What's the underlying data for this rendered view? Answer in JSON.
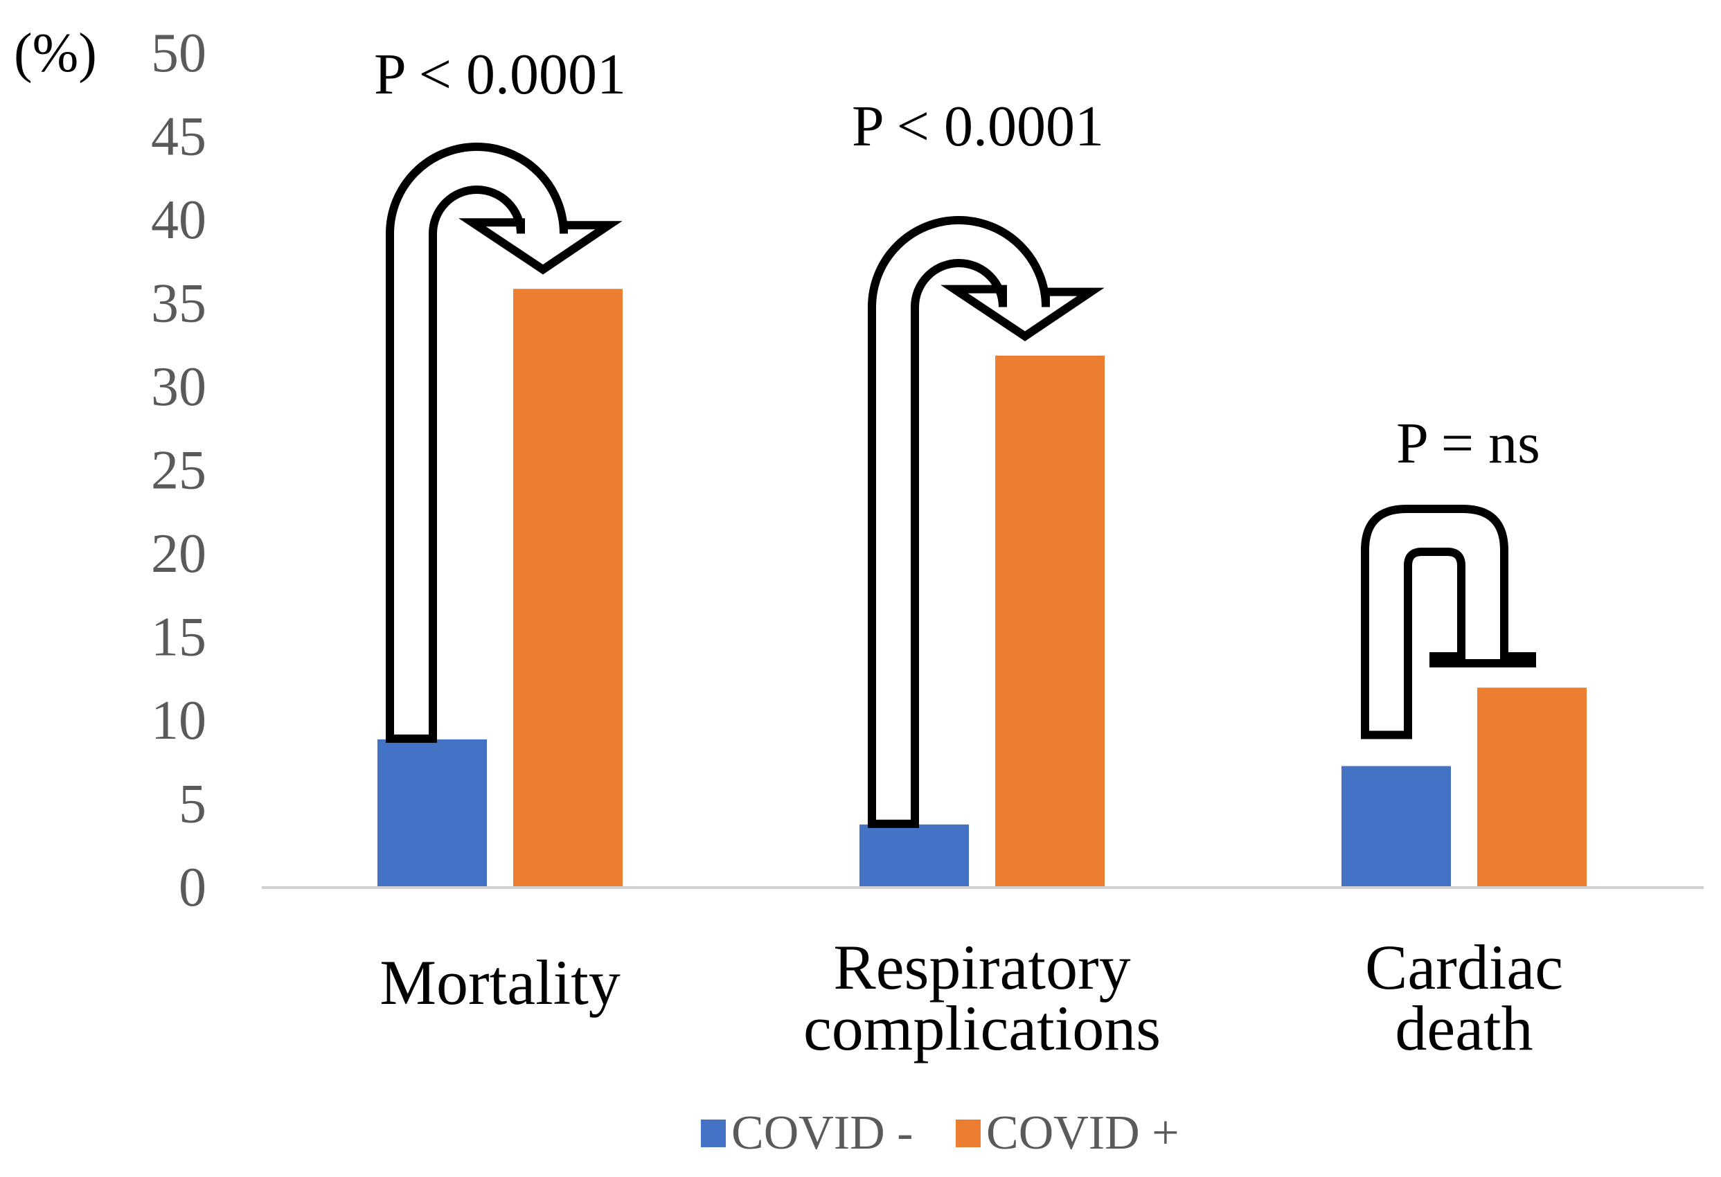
{
  "chart_data": {
    "type": "bar",
    "title": "",
    "xlabel": "",
    "ylabel": "(%)",
    "ylim": [
      0,
      50
    ],
    "yticks": [
      0,
      5,
      10,
      15,
      20,
      25,
      30,
      35,
      40,
      45,
      50
    ],
    "grid": false,
    "legend_position": "bottom",
    "categories": [
      [
        "Mortality"
      ],
      [
        "Respiratory",
        "complications"
      ],
      [
        "Cardiac",
        "death"
      ]
    ],
    "series": [
      {
        "name": "COVID -",
        "color": "#4472c4",
        "values": [
          8.8,
          3.7,
          7.2
        ]
      },
      {
        "name": "COVID +",
        "color": "#ed7d31",
        "values": [
          35.8,
          31.8,
          11.9
        ]
      }
    ],
    "annotations": [
      {
        "category": "Mortality",
        "text": "P < 0.0001",
        "kind": "arrow"
      },
      {
        "category": "Respiratory complications",
        "text": "P < 0.0001",
        "kind": "arrow"
      },
      {
        "category": "Cardiac death",
        "text": "P = ns",
        "kind": "bracket"
      }
    ]
  }
}
